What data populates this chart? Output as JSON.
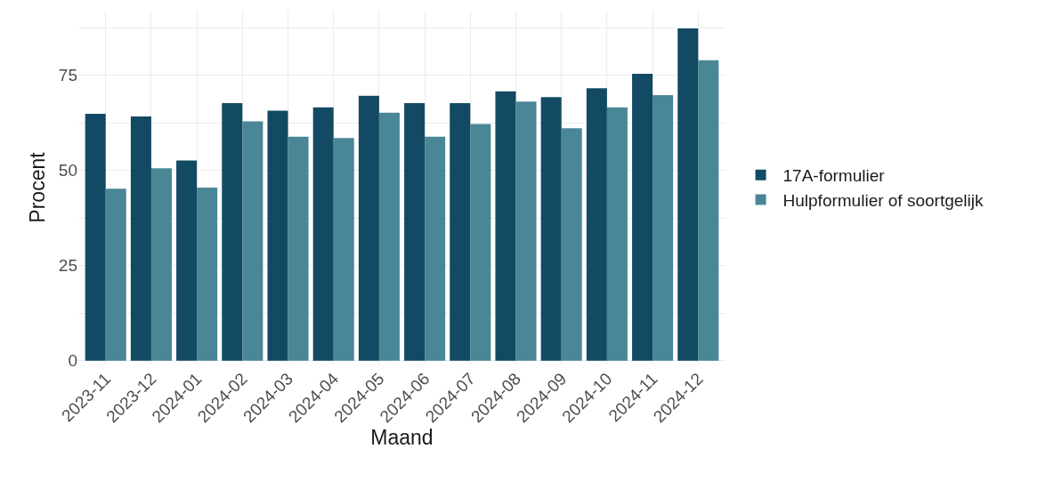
{
  "chart_data": {
    "type": "bar",
    "xlabel": "Maand",
    "ylabel": "Procent",
    "categories": [
      "2023-11",
      "2023-12",
      "2024-01",
      "2024-02",
      "2024-03",
      "2024-04",
      "2024-05",
      "2024-06",
      "2024-07",
      "2024-08",
      "2024-09",
      "2024-10",
      "2024-11",
      "2024-12"
    ],
    "series": [
      {
        "name": "17A-formulier",
        "color": "#124a63",
        "values": [
          64.9,
          64.2,
          52.6,
          67.7,
          65.7,
          66.6,
          69.6,
          67.7,
          67.7,
          70.8,
          69.3,
          71.6,
          75.4,
          87.3
        ]
      },
      {
        "name": "Hulpformulier of soortgelijk",
        "color": "#4a8796",
        "values": [
          45.2,
          50.6,
          45.5,
          62.9,
          58.9,
          58.5,
          65.2,
          58.9,
          62.2,
          68.1,
          61.1,
          66.6,
          69.8,
          79.0
        ]
      }
    ],
    "ylim": [
      -1,
      92
    ],
    "yticks": [
      0,
      {
        "value": 12.5,
        "label": null
      },
      25,
      {
        "value": 37.5,
        "label": null
      },
      50,
      {
        "value": 62.5,
        "label": null
      },
      75,
      {
        "value": 87.5,
        "label": null
      }
    ],
    "grid": true,
    "legend": "right"
  }
}
